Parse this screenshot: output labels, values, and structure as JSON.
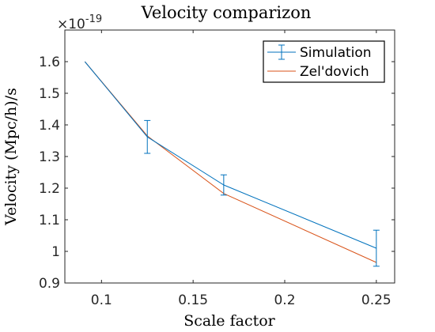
{
  "chart_data": {
    "type": "line",
    "title": "Velocity comparizon",
    "xlabel": "Scale factor",
    "ylabel": "Velocity (Mpc/h)/s",
    "y_exponent_label": "×10",
    "y_exponent": "-19",
    "xlim": [
      0.08,
      0.26
    ],
    "ylim": [
      0.9,
      1.7
    ],
    "x_ticks": [
      0.1,
      0.15,
      0.2,
      0.25
    ],
    "x_tick_labels": [
      "0.1",
      "0.15",
      "0.2",
      "0.25"
    ],
    "y_ticks": [
      0.9,
      1.0,
      1.1,
      1.2,
      1.3,
      1.4,
      1.5,
      1.6
    ],
    "y_tick_labels": [
      "0.9",
      "1",
      "1.1",
      "1.2",
      "1.3",
      "1.4",
      "1.5",
      "1.6"
    ],
    "grid": false,
    "legend_position": "top-right",
    "series": [
      {
        "name": "Simulation",
        "color": "#0072BD",
        "x": [
          0.0909,
          0.125,
          0.1667,
          0.25
        ],
        "y": [
          1.6,
          1.362,
          1.21,
          1.01
        ],
        "error": [
          0.0,
          0.052,
          0.032,
          0.057
        ]
      },
      {
        "name": "Zel'dovich",
        "color": "#D95319",
        "x": [
          0.0909,
          0.125,
          0.1667,
          0.25
        ],
        "y": [
          1.6,
          1.365,
          1.183,
          0.965
        ]
      }
    ]
  }
}
